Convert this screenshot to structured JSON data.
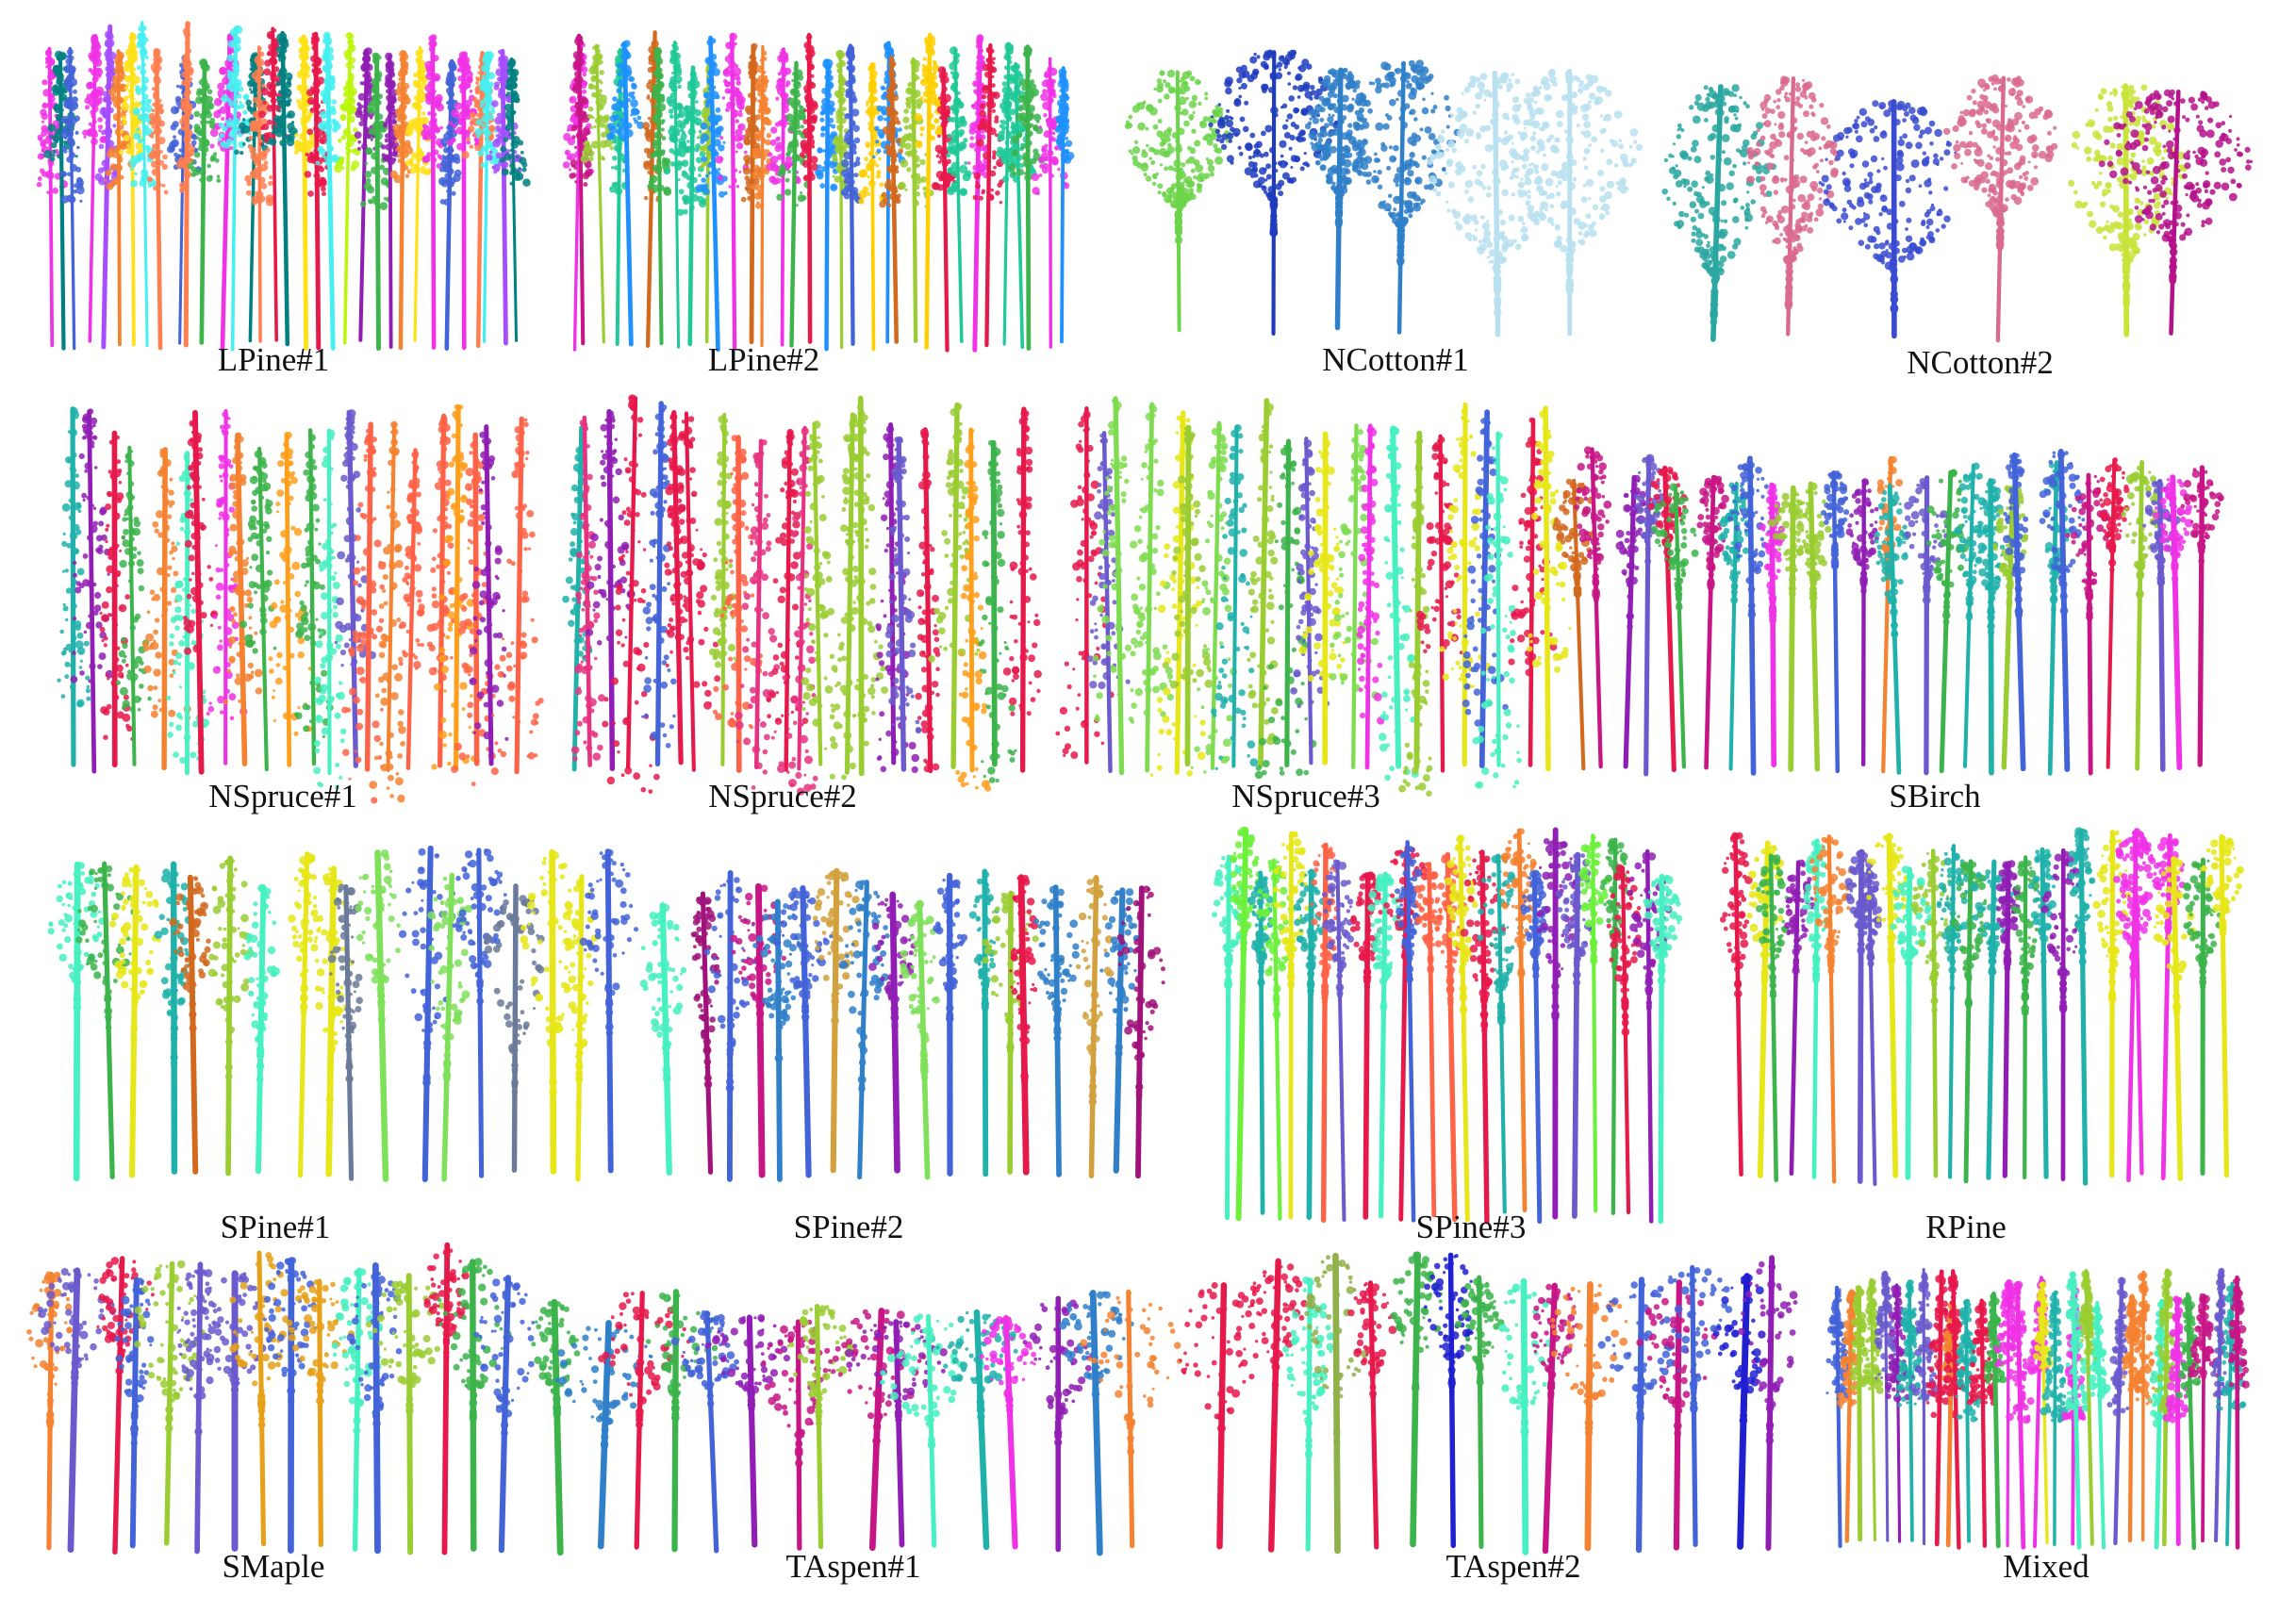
{
  "figure": {
    "panels": [
      {
        "id": "lpine1",
        "label": "LPine#1",
        "style": "pine",
        "palette": [
          "#e6194b",
          "#3cb44b",
          "#ffe119",
          "#4363d8",
          "#f58231",
          "#911eb4",
          "#46f0f0",
          "#f032e6",
          "#bcf60c",
          "#008080",
          "#a64dff",
          "#ff7f50"
        ]
      },
      {
        "id": "lpine2",
        "label": "LPine#2",
        "style": "pine",
        "palette": [
          "#e6194b",
          "#3cb44b",
          "#ffcf00",
          "#4363d8",
          "#f58231",
          "#911eb4",
          "#20c997",
          "#f032e6",
          "#9acd32",
          "#1e90ff",
          "#d2691e",
          "#c71585"
        ]
      },
      {
        "id": "ncotton1",
        "label": "NCotton#1",
        "style": "cotton",
        "palette": [
          "#e8c832",
          "#1f3cc0",
          "#2f7fc9",
          "#e3b23c",
          "#6cd44a",
          "#b8e0f0"
        ]
      },
      {
        "id": "ncotton2",
        "label": "NCotton#2",
        "style": "cotton",
        "palette": [
          "#e2246b",
          "#c9e33a",
          "#b4128a",
          "#3a4bd0",
          "#f0483c",
          "#2aa7a0",
          "#d96a8f",
          "#7bd44a"
        ]
      },
      {
        "id": "nspruce1",
        "label": "NSpruce#1",
        "style": "spruce",
        "palette": [
          "#e6194b",
          "#3cb44b",
          "#ff9f1c",
          "#4363d8",
          "#f58231",
          "#911eb4",
          "#46f0c0",
          "#f032e6",
          "#9acd32",
          "#20b2aa",
          "#6a5acd",
          "#ff6347"
        ]
      },
      {
        "id": "nspruce2",
        "label": "NSpruce#2",
        "style": "spruce",
        "palette": [
          "#e6194b",
          "#3cb44b",
          "#ff9f1c",
          "#4363d8",
          "#f58231",
          "#911eb4",
          "#46f0c0",
          "#e63280",
          "#9acd32",
          "#20b2aa",
          "#6a5acd",
          "#ff6347"
        ]
      },
      {
        "id": "nspruce3",
        "label": "NSpruce#3",
        "style": "spruce",
        "palette": [
          "#3cb44b",
          "#e6e619",
          "#4363d8",
          "#f58231",
          "#911eb4",
          "#46f0c0",
          "#f032e6",
          "#9acd32",
          "#20b2aa",
          "#6a5acd",
          "#e6194b",
          "#7fdc50"
        ]
      },
      {
        "id": "sbirch",
        "label": "SBirch",
        "style": "birch",
        "palette": [
          "#e6194b",
          "#3cb44b",
          "#4363d8",
          "#f58231",
          "#911eb4",
          "#46f0c0",
          "#f032e6",
          "#9acd32",
          "#20b2aa",
          "#6a5acd",
          "#d2691e",
          "#c71585"
        ]
      },
      {
        "id": "spine1",
        "label": "SPine#1",
        "style": "mixed",
        "palette": [
          "#6b7a99",
          "#3cb44b",
          "#4363d8",
          "#f58231",
          "#911eb4",
          "#7fe05a",
          "#c71585",
          "#9acd32",
          "#20b2aa",
          "#e6e619",
          "#d2691e",
          "#46f0c0"
        ]
      },
      {
        "id": "spine2",
        "label": "SPine#2",
        "style": "mixed",
        "palette": [
          "#e6194b",
          "#3cb44b",
          "#4363d8",
          "#a0127a",
          "#911eb4",
          "#7fe05a",
          "#c71585",
          "#9acd32",
          "#20b2aa",
          "#2f7fc9",
          "#d2a03c",
          "#46f0c0"
        ]
      },
      {
        "id": "spine3",
        "label": "SPine#3",
        "style": "tall",
        "palette": [
          "#e6194b",
          "#3cb44b",
          "#4363d8",
          "#f58231",
          "#911eb4",
          "#6cf03c",
          "#f032e6",
          "#e6e619",
          "#20b2aa",
          "#6a5acd",
          "#ff6347",
          "#46f0c0"
        ]
      },
      {
        "id": "rpine",
        "label": "RPine",
        "style": "tall",
        "palette": [
          "#e6194b",
          "#3cb44b",
          "#4363d8",
          "#f58231",
          "#911eb4",
          "#46f0c0",
          "#f032e6",
          "#e6e619",
          "#20b2aa",
          "#6a5acd",
          "#9acd32",
          "#c71585"
        ]
      },
      {
        "id": "smaple",
        "label": "SMaple",
        "style": "broad",
        "palette": [
          "#f58231",
          "#3cb44b",
          "#4363d8",
          "#911eb4",
          "#9acd32",
          "#20b2aa",
          "#e6194b",
          "#46f0c0",
          "#c71585",
          "#6a5acd",
          "#e6a019",
          "#2f7fc9"
        ]
      },
      {
        "id": "taspen1",
        "label": "TAspen#1",
        "style": "broad",
        "palette": [
          "#e6194b",
          "#3cb44b",
          "#4363d8",
          "#f58231",
          "#911eb4",
          "#46f0c0",
          "#f032e6",
          "#e6e619",
          "#20b2aa",
          "#c71585",
          "#9acd32",
          "#2f7fc9"
        ]
      },
      {
        "id": "taspen2",
        "label": "TAspen#2",
        "style": "broad",
        "palette": [
          "#8fb04a",
          "#e6194b",
          "#4363d8",
          "#f58231",
          "#911eb4",
          "#46f0c0",
          "#f032e6",
          "#e6e619",
          "#2020d0",
          "#c71585",
          "#3cb44b",
          "#ff4060"
        ]
      },
      {
        "id": "mixed",
        "label": "Mixed",
        "style": "pine",
        "palette": [
          "#e6194b",
          "#3cb44b",
          "#4363d8",
          "#f58231",
          "#911eb4",
          "#46f0c0",
          "#f032e6",
          "#e6e619",
          "#20b2aa",
          "#c71585",
          "#9acd32",
          "#6a5acd"
        ]
      }
    ]
  }
}
